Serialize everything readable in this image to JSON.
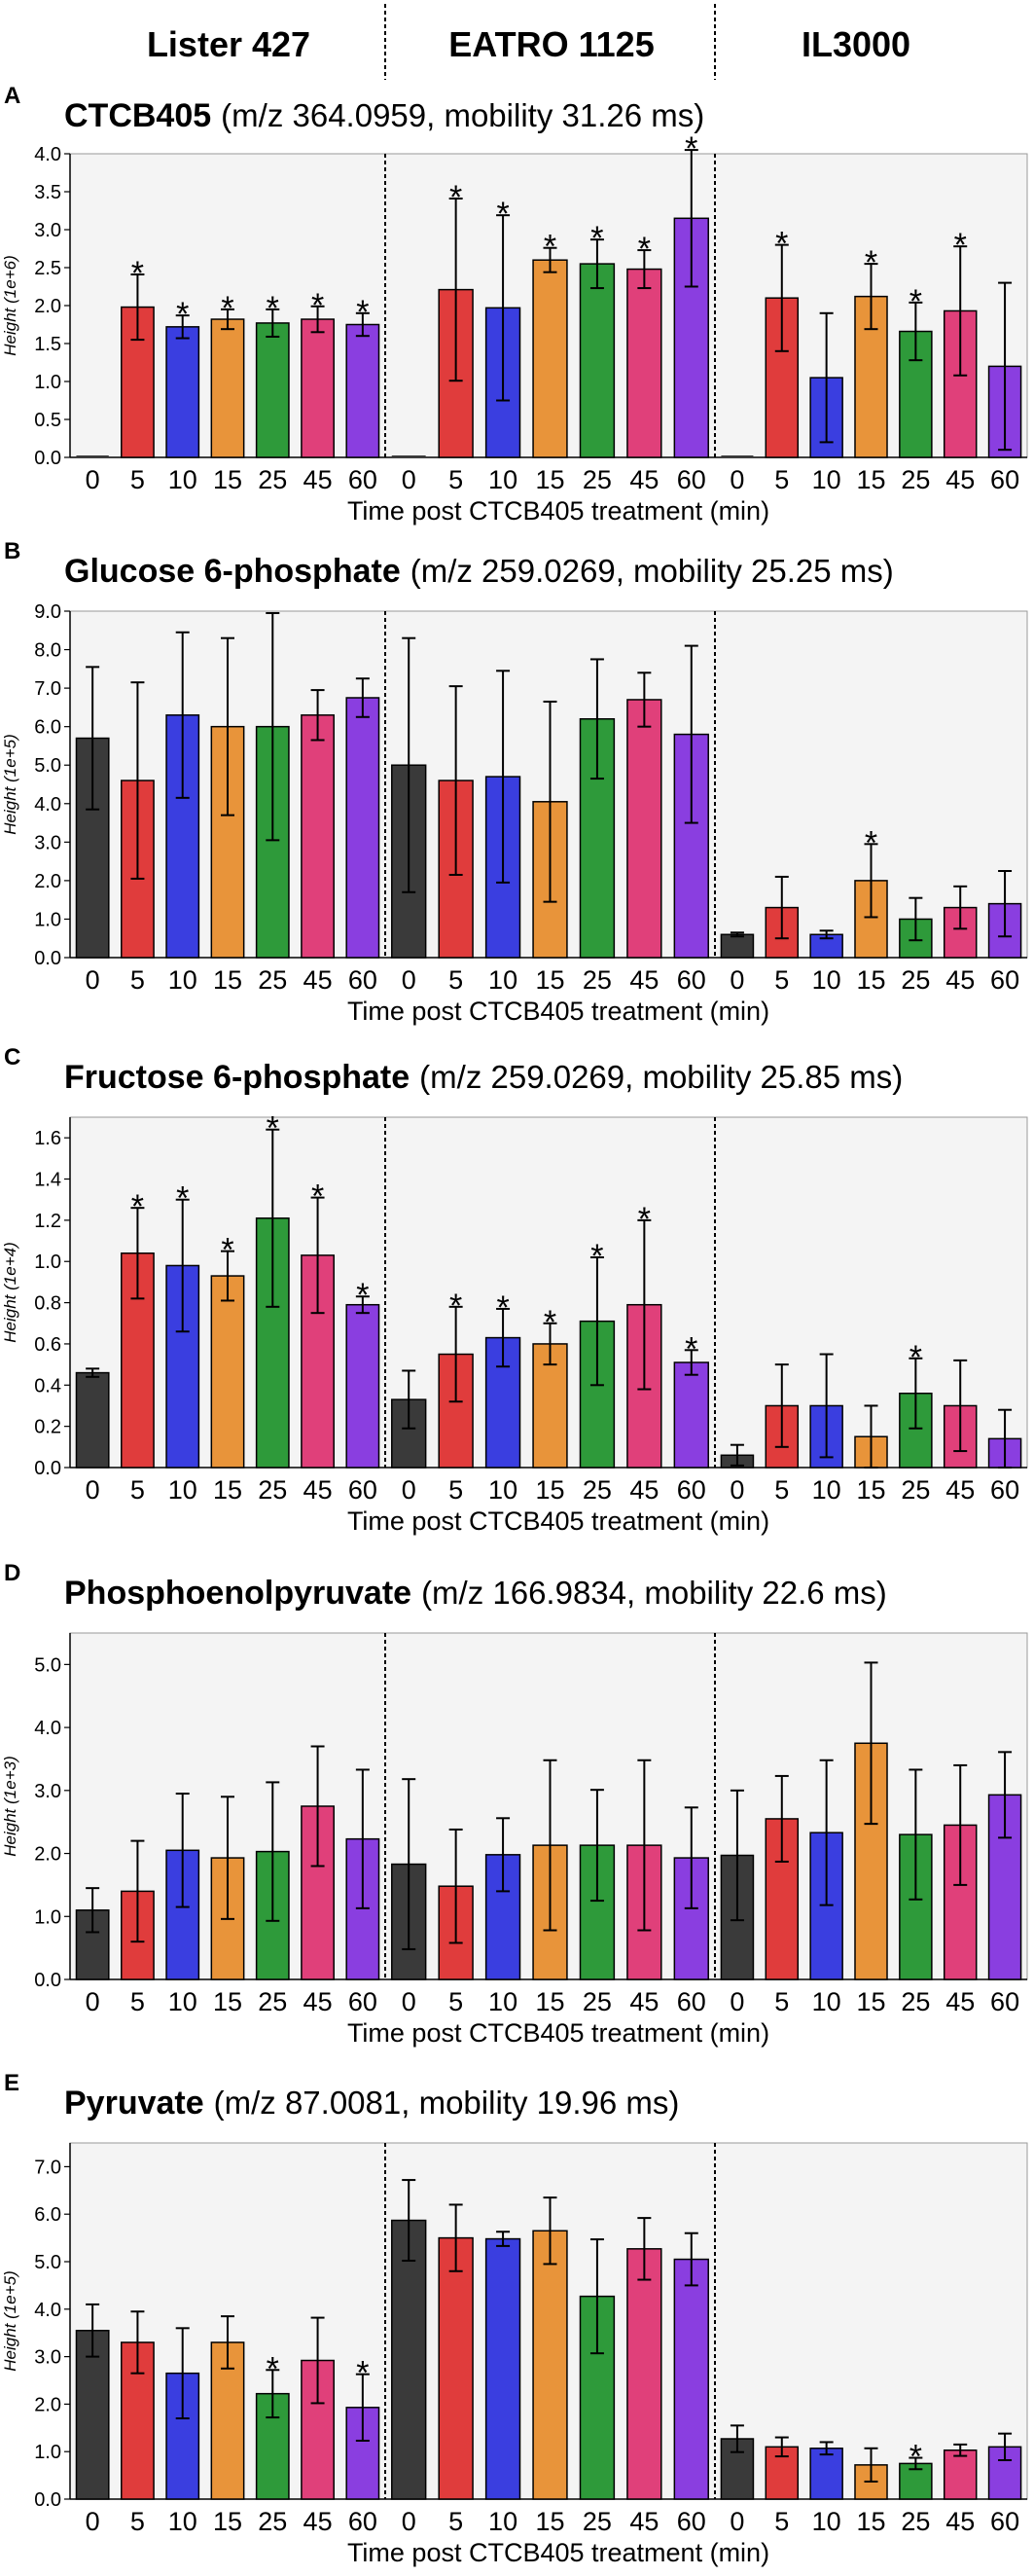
{
  "strains": [
    "Lister 427",
    "EATRO 1125",
    "IL3000"
  ],
  "colors": [
    "#3a3a3a",
    "#e03c3c",
    "#3a3ee0",
    "#e8943a",
    "#2e9a3a",
    "#e0407a",
    "#8a3ee0"
  ],
  "chart_data": [
    {
      "type": "bar",
      "letter": "A",
      "name": "CTCB405",
      "info": "(m/z 364.0959, mobility 31.26 ms)",
      "ylabel": "Height (1e+6)",
      "xlabel": "Time post CTCB405 treatment (min)",
      "ylim": [
        0,
        4.0
      ],
      "yticks": [
        "0.0",
        "0.5",
        "1.0",
        "1.5",
        "2.0",
        "2.5",
        "3.0",
        "3.5",
        "4.0"
      ],
      "categories": [
        "0",
        "5",
        "10",
        "15",
        "25",
        "45",
        "60"
      ],
      "groups": [
        {
          "strain": "Lister 427",
          "values": [
            0,
            1.98,
            1.72,
            1.82,
            1.77,
            1.82,
            1.75
          ],
          "errors": [
            0,
            0.43,
            0.15,
            0.13,
            0.18,
            0.17,
            0.15
          ],
          "stars": [
            0,
            1,
            1,
            1,
            1,
            1,
            1
          ]
        },
        {
          "strain": "EATRO 1125",
          "values": [
            0,
            2.21,
            1.97,
            2.6,
            2.55,
            2.48,
            3.15
          ],
          "errors": [
            0,
            1.2,
            1.22,
            0.16,
            0.32,
            0.25,
            0.9
          ],
          "stars": [
            0,
            1,
            1,
            1,
            1,
            1,
            1
          ]
        },
        {
          "strain": "IL3000",
          "values": [
            0,
            2.1,
            1.05,
            2.12,
            1.66,
            1.93,
            1.2
          ],
          "errors": [
            0,
            0.7,
            0.85,
            0.43,
            0.38,
            0.85,
            1.1
          ],
          "stars": [
            0,
            1,
            0,
            1,
            1,
            1,
            0
          ]
        }
      ]
    },
    {
      "type": "bar",
      "letter": "B",
      "name": "Glucose 6-phosphate",
      "info": "(m/z 259.0269, mobility 25.25 ms)",
      "ylabel": "Height (1e+5)",
      "xlabel": "Time post CTCB405 treatment (min)",
      "ylim": [
        0,
        9.0
      ],
      "yticks": [
        "0.0",
        "1.0",
        "2.0",
        "3.0",
        "4.0",
        "5.0",
        "6.0",
        "7.0",
        "8.0",
        "9.0"
      ],
      "categories": [
        "0",
        "5",
        "10",
        "15",
        "25",
        "45",
        "60"
      ],
      "groups": [
        {
          "strain": "Lister 427",
          "values": [
            5.7,
            4.6,
            6.3,
            6.0,
            6.0,
            6.3,
            6.75
          ],
          "errors": [
            1.85,
            2.55,
            2.15,
            2.3,
            2.95,
            0.65,
            0.5
          ],
          "stars": [
            0,
            0,
            0,
            0,
            0,
            0,
            0
          ]
        },
        {
          "strain": "EATRO 1125",
          "values": [
            5.0,
            4.6,
            4.7,
            4.05,
            6.2,
            6.7,
            5.8
          ],
          "errors": [
            3.3,
            2.45,
            2.75,
            2.6,
            1.55,
            0.7,
            2.3
          ],
          "stars": [
            0,
            0,
            0,
            0,
            0,
            0,
            0
          ]
        },
        {
          "strain": "IL3000",
          "values": [
            0.6,
            1.3,
            0.6,
            2.0,
            1.0,
            1.3,
            1.4
          ],
          "errors": [
            0.05,
            0.8,
            0.1,
            0.95,
            0.55,
            0.55,
            0.85
          ],
          "stars": [
            0,
            0,
            0,
            1,
            0,
            0,
            0
          ]
        }
      ]
    },
    {
      "type": "bar",
      "letter": "C",
      "name": "Fructose 6-phosphate",
      "info": "(m/z 259.0269, mobility 25.85 ms)",
      "ylabel": "Height (1e+4)",
      "xlabel": "Time post CTCB405 treatment (min)",
      "ylim": [
        0,
        1.7
      ],
      "yticks": [
        "0.0",
        "0.2",
        "0.4",
        "0.6",
        "0.8",
        "1.0",
        "1.2",
        "1.4",
        "1.6"
      ],
      "categories": [
        "0",
        "5",
        "10",
        "15",
        "25",
        "45",
        "60"
      ],
      "groups": [
        {
          "strain": "Lister 427",
          "values": [
            0.46,
            1.04,
            0.98,
            0.93,
            1.21,
            1.03,
            0.79
          ],
          "errors": [
            0.02,
            0.22,
            0.32,
            0.12,
            0.43,
            0.28,
            0.04
          ],
          "stars": [
            0,
            1,
            1,
            1,
            1,
            1,
            1
          ]
        },
        {
          "strain": "EATRO 1125",
          "values": [
            0.33,
            0.55,
            0.63,
            0.6,
            0.71,
            0.79,
            0.51
          ],
          "errors": [
            0.14,
            0.23,
            0.14,
            0.1,
            0.31,
            0.41,
            0.06
          ],
          "stars": [
            0,
            1,
            1,
            1,
            1,
            1,
            1
          ]
        },
        {
          "strain": "IL3000",
          "values": [
            0.06,
            0.3,
            0.3,
            0.15,
            0.36,
            0.3,
            0.14
          ],
          "errors": [
            0.05,
            0.2,
            0.25,
            0.15,
            0.17,
            0.22,
            0.14
          ],
          "stars": [
            0,
            0,
            0,
            0,
            1,
            0,
            0
          ]
        }
      ]
    },
    {
      "type": "bar",
      "letter": "D",
      "name": "Phosphoenolpyruvate",
      "info": "(m/z 166.9834, mobility 22.6 ms)",
      "ylabel": "Height (1e+3)",
      "xlabel": "Time post CTCB405 treatment (min)",
      "ylim": [
        0,
        5.5
      ],
      "yticks": [
        "0.0",
        "1.0",
        "2.0",
        "3.0",
        "4.0",
        "5.0"
      ],
      "categories": [
        "0",
        "5",
        "10",
        "15",
        "25",
        "45",
        "60"
      ],
      "groups": [
        {
          "strain": "Lister 427",
          "values": [
            1.1,
            1.4,
            2.05,
            1.93,
            2.03,
            2.75,
            2.23
          ],
          "errors": [
            0.35,
            0.8,
            0.9,
            0.97,
            1.1,
            0.95,
            1.1
          ],
          "stars": [
            0,
            0,
            0,
            0,
            0,
            0,
            0
          ]
        },
        {
          "strain": "EATRO 1125",
          "values": [
            1.83,
            1.48,
            1.98,
            2.13,
            2.13,
            2.13,
            1.93
          ],
          "errors": [
            1.35,
            0.9,
            0.58,
            1.35,
            0.88,
            1.35,
            0.8
          ],
          "stars": [
            0,
            0,
            0,
            0,
            0,
            0,
            0
          ]
        },
        {
          "strain": "IL3000",
          "values": [
            1.97,
            2.55,
            2.33,
            3.75,
            2.3,
            2.45,
            2.93
          ],
          "errors": [
            1.03,
            0.68,
            1.15,
            1.28,
            1.03,
            0.95,
            0.68
          ],
          "stars": [
            0,
            0,
            0,
            0,
            0,
            0,
            0
          ]
        }
      ]
    },
    {
      "type": "bar",
      "letter": "E",
      "name": "Pyruvate",
      "info": "(m/z 87.0081, mobility 19.96 ms)",
      "ylabel": "Height (1e+5)",
      "xlabel": "Time post CTCB405 treatment (min)",
      "ylim": [
        0,
        7.5
      ],
      "yticks": [
        "0.0",
        "1.0",
        "2.0",
        "3.0",
        "4.0",
        "5.0",
        "6.0",
        "7.0"
      ],
      "categories": [
        "0",
        "5",
        "10",
        "15",
        "25",
        "45",
        "60"
      ],
      "groups": [
        {
          "strain": "Lister 427",
          "values": [
            3.55,
            3.3,
            2.65,
            3.3,
            2.22,
            2.92,
            1.93
          ],
          "errors": [
            0.55,
            0.65,
            0.95,
            0.55,
            0.5,
            0.9,
            0.7
          ],
          "stars": [
            0,
            0,
            0,
            0,
            1,
            0,
            1
          ]
        },
        {
          "strain": "EATRO 1125",
          "values": [
            5.87,
            5.5,
            5.48,
            5.65,
            4.27,
            5.27,
            5.05
          ],
          "errors": [
            0.85,
            0.7,
            0.15,
            0.7,
            1.2,
            0.65,
            0.55
          ],
          "stars": [
            0,
            0,
            0,
            0,
            0,
            0,
            0
          ]
        },
        {
          "strain": "IL3000",
          "values": [
            1.27,
            1.1,
            1.07,
            0.72,
            0.75,
            1.03,
            1.1
          ],
          "errors": [
            0.28,
            0.2,
            0.13,
            0.35,
            0.12,
            0.12,
            0.28
          ],
          "stars": [
            0,
            0,
            0,
            0,
            1,
            0,
            0
          ]
        }
      ]
    }
  ]
}
